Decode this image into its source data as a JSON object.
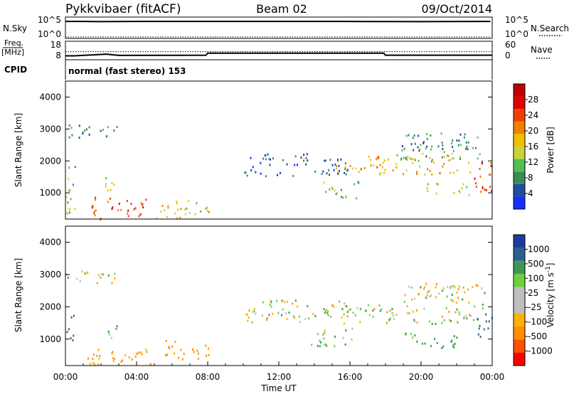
{
  "header": {
    "station": "Pykkvibaer (fitACF)",
    "beam": "Beam 02",
    "date": "09/Oct/2014"
  },
  "status_panels": {
    "nsky_label": "N.Sky",
    "nsky_ticks": [
      "10^5",
      "10^0"
    ],
    "nsearch_label": "N.Search",
    "nsearch_ticks": [
      "10^5",
      "10^0"
    ],
    "freq_label_1": "Freq.",
    "freq_label_2": "[MHz]",
    "freq_ticks": [
      "18",
      "8"
    ],
    "nave_label": "Nave",
    "nave_ticks": [
      "60",
      "0"
    ],
    "cpid_label": "CPID",
    "cpid_value": "normal (fast stereo) 153"
  },
  "colors": {
    "power_scale": [
      "#1430ff",
      "#234ba0",
      "#3a8a5a",
      "#52c050",
      "#c8d43c",
      "#f0c000",
      "#f08000",
      "#f04000",
      "#e00000",
      "#c00000"
    ],
    "velocity_scale": [
      "#ff0000",
      "#ff5000",
      "#ff9000",
      "#ffb000",
      "#bebebe",
      "#bebebe",
      "#6cd040",
      "#3a9a50",
      "#2a6090",
      "#1c3c9c"
    ]
  },
  "chart_data": [
    {
      "type": "line",
      "title": "N.Sky / N.Search",
      "x": [
        0,
        1,
        2,
        4,
        8,
        12,
        16,
        20,
        23.9
      ],
      "y_log_range": [
        0,
        5
      ],
      "series": [
        {
          "values": [
            4.2,
            4.2,
            4.15,
            4.2,
            4.2,
            4.2,
            4.2,
            4.15,
            4.2
          ]
        },
        {
          "values": [
            0,
            0,
            0,
            0,
            0,
            0,
            0,
            0,
            0
          ]
        }
      ]
    },
    {
      "type": "line",
      "title": "Freq / Nave",
      "x": [
        0,
        0.5,
        1.5,
        2.3,
        3,
        7.9,
        8.0,
        17.9,
        18.0,
        24
      ],
      "ylim": [
        8,
        18
      ],
      "series": [
        {
          "values": [
            9.2,
            9.2,
            9.8,
            10.3,
            9.5,
            9.6,
            11.0,
            11.0,
            9.6,
            9.6
          ]
        },
        {
          "values": [
            12,
            12,
            12,
            12,
            12,
            12,
            12,
            12,
            12,
            12
          ]
        }
      ]
    },
    {
      "type": "heatmap",
      "quantity": "Power",
      "ylabel": "Slant Range [km]",
      "yticks": [
        "4000",
        "3000",
        "2000",
        "1000"
      ],
      "ylim": [
        180,
        4500
      ],
      "xlim": [
        0,
        24
      ],
      "colorbar_label": "Power [dB]",
      "colorbar_ticks": [
        "28",
        "24",
        "20",
        "16",
        "12",
        "8",
        "4"
      ],
      "cmap": "power_scale",
      "blobs": [
        {
          "t": 0.2,
          "r": 1000,
          "dt": 0.35,
          "dr": 900,
          "v": 12
        },
        {
          "t": 1.5,
          "r": 2950,
          "dt": 1.6,
          "dr": 200,
          "v": 7
        },
        {
          "t": 3.0,
          "r": 550,
          "dt": 1.6,
          "dr": 350,
          "v": 22
        },
        {
          "t": 2.5,
          "r": 1400,
          "dt": 0.4,
          "dr": 300,
          "v": 13
        },
        {
          "t": 6.6,
          "r": 500,
          "dt": 1.6,
          "dr": 300,
          "v": 15
        },
        {
          "t": 15.5,
          "r": 1150,
          "dt": 1.0,
          "dr": 300,
          "v": 11
        },
        {
          "t": 19.0,
          "r": 1900,
          "dt": 3.8,
          "dr": 300,
          "v": 18
        },
        {
          "t": 21.0,
          "r": 2300,
          "dt": 2.5,
          "dr": 300,
          "v": 9
        },
        {
          "t": 21.2,
          "r": 2650,
          "dt": 2.2,
          "dr": 250,
          "v": 7
        },
        {
          "t": 23.4,
          "r": 1500,
          "dt": 0.6,
          "dr": 500,
          "v": 23
        },
        {
          "t": 21.5,
          "r": 1150,
          "dt": 1.2,
          "dr": 200,
          "v": 14
        },
        {
          "t": 13.0,
          "r": 1900,
          "dt": 3.0,
          "dr": 350,
          "v": 5
        }
      ]
    },
    {
      "type": "heatmap",
      "quantity": "Velocity",
      "ylabel": "Slant Range [km]",
      "yticks": [
        "4000",
        "3000",
        "2000",
        "1000"
      ],
      "ylim": [
        180,
        4500
      ],
      "xlim": [
        0,
        24
      ],
      "xlabel": "Time UT",
      "xticks": [
        "00:00",
        "04:00",
        "08:00",
        "12:00",
        "16:00",
        "20:00",
        "00:00"
      ],
      "colorbar_label": "Velocity [m s^-1]",
      "colorbar_ticks": [
        "1000",
        "500",
        "100",
        "25",
        "-25",
        "-100",
        "-500",
        "-1000"
      ],
      "cmap": "velocity_scale",
      "blobs": [
        {
          "t": 0.2,
          "r": 1300,
          "dt": 0.35,
          "dr": 500,
          "v": 800
        },
        {
          "t": 1.5,
          "r": 2950,
          "dt": 1.6,
          "dr": 200,
          "v": 0
        },
        {
          "t": 3.0,
          "r": 500,
          "dt": 1.8,
          "dr": 300,
          "v": -200
        },
        {
          "t": 6.8,
          "r": 700,
          "dt": 1.3,
          "dr": 300,
          "v": -300
        },
        {
          "t": 2.5,
          "r": 1300,
          "dt": 0.4,
          "dr": 250,
          "v": 80
        },
        {
          "t": 19.5,
          "r": 1800,
          "dt": 4.0,
          "dr": 300,
          "v": 0
        },
        {
          "t": 21.2,
          "r": 2400,
          "dt": 2.5,
          "dr": 350,
          "v": 0
        },
        {
          "t": 15.0,
          "r": 1100,
          "dt": 1.2,
          "dr": 300,
          "v": 80
        },
        {
          "t": 23.5,
          "r": 1400,
          "dt": 0.5,
          "dr": 400,
          "v": 700
        },
        {
          "t": 20.5,
          "r": 1000,
          "dt": 1.5,
          "dr": 250,
          "v": 200
        },
        {
          "t": 13.0,
          "r": 1900,
          "dt": 3.0,
          "dr": 350,
          "v": 0
        }
      ]
    }
  ]
}
